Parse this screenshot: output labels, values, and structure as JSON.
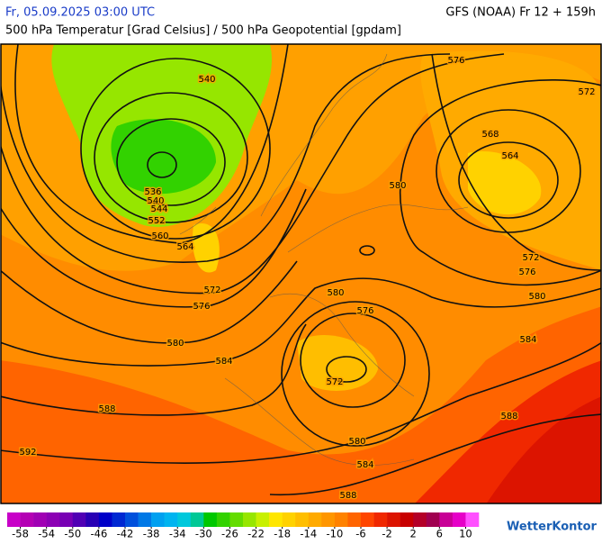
{
  "header": {
    "date_time": "Fr, 05.09.2025 03:00 UTC",
    "model_run": "GFS (NOAA) Fr 12 + 159h",
    "subtitle": "500 hPa Temperatur [Grad Celsius] / 500 hPa Geopotential [gpdam]"
  },
  "contour_labels": [
    540,
    536,
    540,
    544,
    552,
    560,
    564,
    572,
    576,
    580,
    584,
    588,
    592,
    576,
    572,
    568,
    564,
    580,
    572,
    576,
    580,
    580,
    576,
    584,
    572,
    580,
    584,
    588,
    588
  ],
  "colorbar": {
    "lim": [
      -60,
      12
    ],
    "ticks": [
      -58,
      -54,
      -50,
      -46,
      -42,
      -38,
      -34,
      -30,
      -26,
      -22,
      -18,
      -14,
      -10,
      -6,
      -2,
      2,
      6,
      10
    ],
    "colors": [
      "#c800c8",
      "#b400b4",
      "#a000b4",
      "#8c00b4",
      "#7800b4",
      "#5000b4",
      "#2800b4",
      "#0000c8",
      "#0028d2",
      "#0050dc",
      "#0078e6",
      "#00a0f0",
      "#00b4f0",
      "#00c8dc",
      "#00c896",
      "#00c800",
      "#32d200",
      "#64dc00",
      "#96e600",
      "#c8f000",
      "#ffe600",
      "#ffd200",
      "#ffbe00",
      "#ffaa00",
      "#ff9600",
      "#ff8200",
      "#ff6400",
      "#ff4600",
      "#f02800",
      "#dc1400",
      "#c80000",
      "#b40028",
      "#a00050",
      "#c80096",
      "#e600c8",
      "#ff50ff"
    ]
  },
  "logo": "WetterKontor"
}
